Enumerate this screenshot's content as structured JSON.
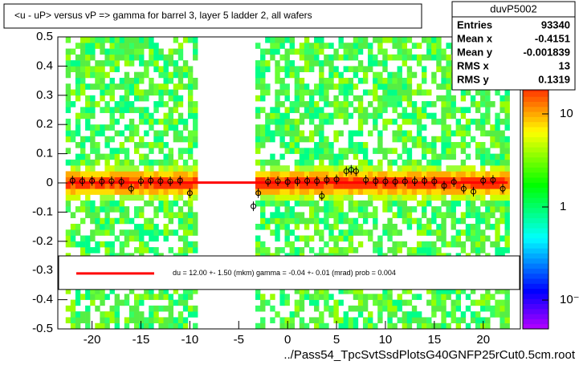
{
  "chart_data": {
    "type": "heatmap-profile",
    "title": "<u - uP>       versus   vP =>  gamma for barrel 3, layer 5 ladder 2, all wafers",
    "x_label": "../Pass54_TpcSvtSsdPlotsG40GNFP25rCut0.5cm.root",
    "xlim": [
      -23.5,
      23.8
    ],
    "ylim": [
      -0.5,
      0.5
    ],
    "xticks": [
      -20,
      -15,
      -10,
      -5,
      0,
      5,
      10,
      15,
      20
    ],
    "yticks": [
      -0.5,
      -0.4,
      -0.3,
      -0.2,
      -0.1,
      0,
      0.1,
      0.2,
      0.3,
      0.4,
      0.5
    ],
    "zlim": [
      0.049,
      25.4
    ],
    "zscale": "log",
    "zticks": [
      {
        "value": 10,
        "label": "10"
      },
      {
        "value": 1,
        "label": "1"
      },
      {
        "value": 0.1,
        "label": "10⁻¹"
      }
    ],
    "heatmap": {
      "regions": [
        [
          -22.7,
          -9.3
        ],
        [
          -3.3,
          22.7
        ]
      ]
    },
    "profile": {
      "color": "#000000",
      "x": [
        -22,
        -21,
        -20,
        -19,
        -18,
        -17,
        -16,
        -15,
        -14,
        -13,
        -12,
        -11,
        -10,
        -3.5,
        -3,
        -2,
        -1,
        0,
        1,
        2,
        3,
        3.5,
        4,
        5,
        6,
        6.5,
        7,
        8,
        9,
        10,
        11,
        12,
        13,
        14,
        15,
        16,
        17,
        18,
        19,
        20,
        21,
        22
      ],
      "values": [
        0.008,
        0.006,
        0.007,
        0.005,
        0.006,
        0.004,
        -0.02,
        0.006,
        0.008,
        0.006,
        0.005,
        0.008,
        -0.035,
        -0.08,
        -0.035,
        0.004,
        0.006,
        0.003,
        0.005,
        0.007,
        0.006,
        -0.045,
        0.01,
        0.012,
        0.04,
        0.045,
        0.04,
        0.01,
        0.006,
        0.005,
        0.004,
        0.005,
        0.006,
        0.007,
        0.005,
        -0.01,
        0.003,
        -0.02,
        -0.03,
        0.008,
        0.01,
        -0.02
      ]
    },
    "fit": {
      "color": "#ff0000",
      "x": [
        -22.5,
        22.5
      ],
      "values": [
        0.001,
        0.001
      ]
    },
    "fit_legend": "du =    12.00 +-  1.50 (mkm) gamma =   -0.04 +-  0.01 (mrad) prob = 0.004",
    "stats": {
      "name": "duvP5002",
      "rows": [
        [
          "Entries",
          "93340"
        ],
        [
          "Mean x",
          "-0.4151"
        ],
        [
          "Mean y",
          "-0.001839"
        ],
        [
          "RMS x",
          "13"
        ],
        [
          "RMS y",
          "0.1319"
        ]
      ]
    }
  }
}
